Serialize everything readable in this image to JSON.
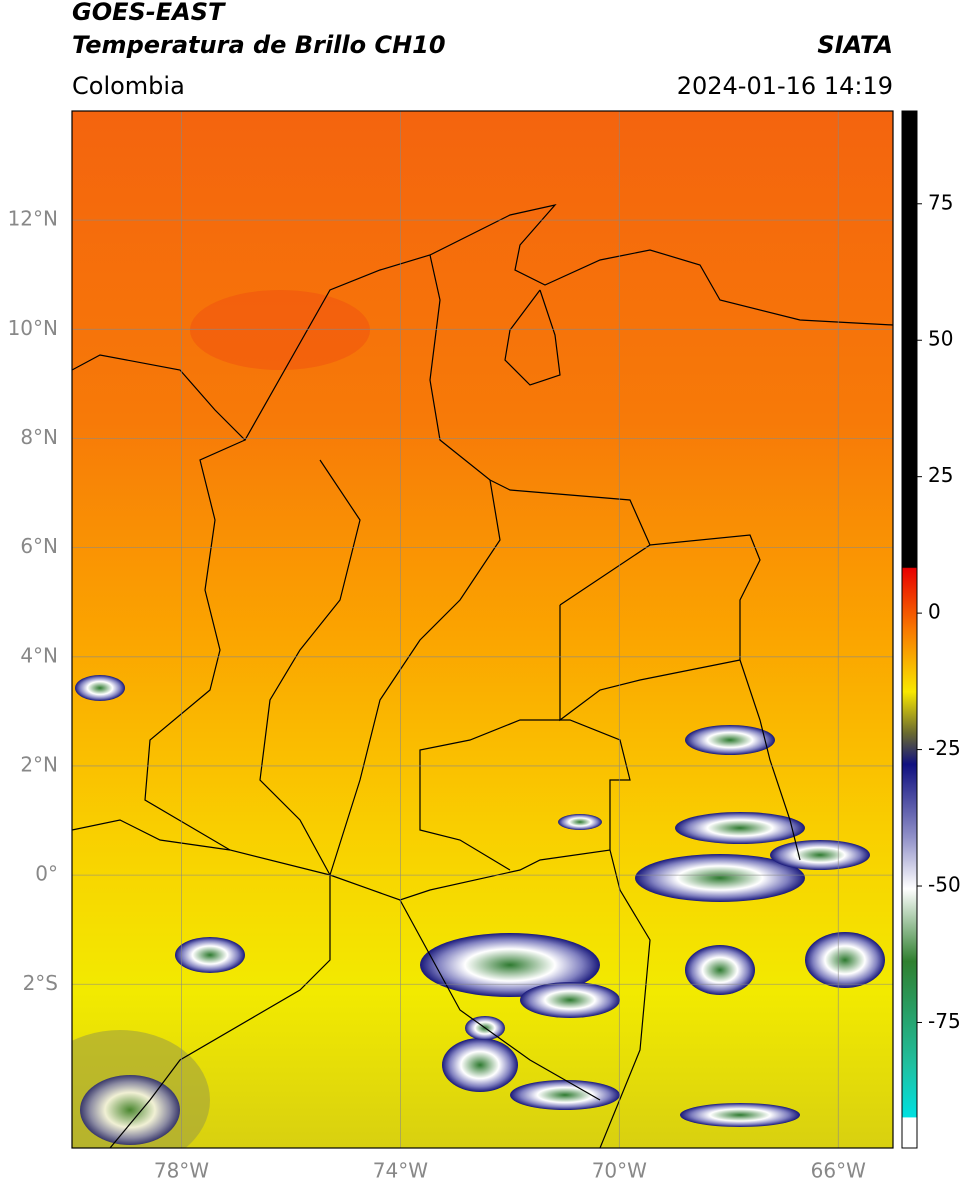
{
  "header": {
    "title": "GOES-EAST",
    "subtitle": "Temperatura de Brillo CH10",
    "source": "SIATA",
    "region": "Colombia",
    "datetime": "2024-01-16 14:19"
  },
  "map": {
    "xlim": [
      -80,
      -65
    ],
    "ylim": [
      -5,
      14
    ],
    "xticks": [
      {
        "value": -78,
        "label": "78°W"
      },
      {
        "value": -74,
        "label": "74°W"
      },
      {
        "value": -70,
        "label": "70°W"
      },
      {
        "value": -66,
        "label": "66°W"
      }
    ],
    "yticks": [
      {
        "value": 12,
        "label": "12°N"
      },
      {
        "value": 10,
        "label": "10°N"
      },
      {
        "value": 8,
        "label": "8°N"
      },
      {
        "value": 6,
        "label": "6°N"
      },
      {
        "value": 4,
        "label": "4°N"
      },
      {
        "value": 2,
        "label": "2°N"
      },
      {
        "value": 0,
        "label": "0°"
      },
      {
        "value": -2,
        "label": "2°S"
      }
    ]
  },
  "colorbar": {
    "lim": [
      -98,
      92
    ],
    "ticks": [
      75,
      50,
      25,
      0,
      -25,
      -50,
      -75
    ]
  }
}
